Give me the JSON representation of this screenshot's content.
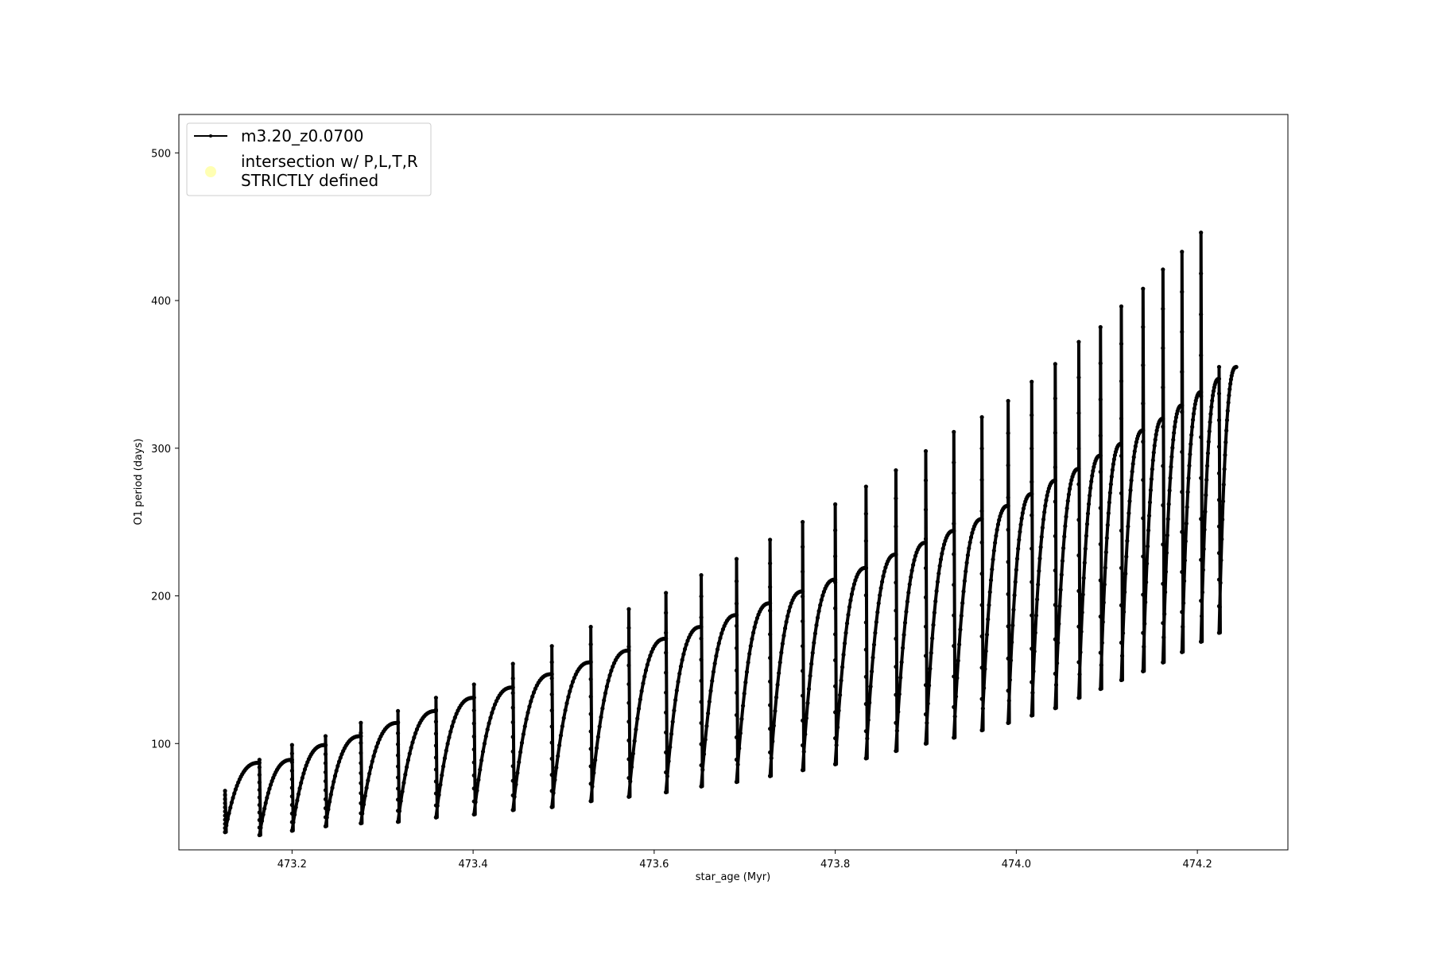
{
  "chart_data": {
    "type": "line",
    "title": "",
    "xlabel": "star_age (Myr)",
    "ylabel": "O1 period (days)",
    "xlim": [
      473.075,
      474.3
    ],
    "ylim": [
      28,
      526
    ],
    "xticks": [
      473.2,
      473.4,
      473.6,
      473.8,
      474.0,
      474.2
    ],
    "xtick_labels": [
      "473.2",
      "473.4",
      "473.6",
      "473.8",
      "474.0",
      "474.2"
    ],
    "yticks": [
      100,
      200,
      300,
      400,
      500
    ],
    "ytick_labels": [
      "100",
      "200",
      "300",
      "400",
      "500"
    ],
    "grid": false,
    "legend_position": "upper-left",
    "series": [
      {
        "name": "m3.20_z0.0700",
        "color": "#000000",
        "marker": "dot",
        "cycles": [
          {
            "start": 473.126,
            "end": 473.164,
            "min": 40,
            "max": 87,
            "spike": 68
          },
          {
            "start": 473.164,
            "end": 473.2,
            "min": 38,
            "max": 89,
            "spike": 89
          },
          {
            "start": 473.2,
            "end": 473.237,
            "min": 41,
            "max": 99,
            "spike": 99
          },
          {
            "start": 473.237,
            "end": 473.276,
            "min": 44,
            "max": 105,
            "spike": 105
          },
          {
            "start": 473.276,
            "end": 473.317,
            "min": 46,
            "max": 114,
            "spike": 114
          },
          {
            "start": 473.317,
            "end": 473.359,
            "min": 47,
            "max": 122,
            "spike": 122
          },
          {
            "start": 473.359,
            "end": 473.401,
            "min": 50,
            "max": 131,
            "spike": 131
          },
          {
            "start": 473.401,
            "end": 473.444,
            "min": 52,
            "max": 138,
            "spike": 140
          },
          {
            "start": 473.444,
            "end": 473.487,
            "min": 55,
            "max": 147,
            "spike": 154
          },
          {
            "start": 473.487,
            "end": 473.53,
            "min": 57,
            "max": 155,
            "spike": 166
          },
          {
            "start": 473.53,
            "end": 473.572,
            "min": 61,
            "max": 163,
            "spike": 179
          },
          {
            "start": 473.572,
            "end": 473.613,
            "min": 64,
            "max": 171,
            "spike": 191
          },
          {
            "start": 473.613,
            "end": 473.652,
            "min": 67,
            "max": 179,
            "spike": 202
          },
          {
            "start": 473.652,
            "end": 473.691,
            "min": 71,
            "max": 187,
            "spike": 214
          },
          {
            "start": 473.691,
            "end": 473.728,
            "min": 74,
            "max": 195,
            "spike": 225
          },
          {
            "start": 473.728,
            "end": 473.764,
            "min": 78,
            "max": 203,
            "spike": 238
          },
          {
            "start": 473.764,
            "end": 473.8,
            "min": 82,
            "max": 211,
            "spike": 250
          },
          {
            "start": 473.8,
            "end": 473.834,
            "min": 86,
            "max": 219,
            "spike": 262
          },
          {
            "start": 473.834,
            "end": 473.867,
            "min": 90,
            "max": 228,
            "spike": 274
          },
          {
            "start": 473.867,
            "end": 473.9,
            "min": 95,
            "max": 236,
            "spike": 285
          },
          {
            "start": 473.9,
            "end": 473.931,
            "min": 100,
            "max": 244,
            "spike": 298
          },
          {
            "start": 473.931,
            "end": 473.962,
            "min": 104,
            "max": 252,
            "spike": 311
          },
          {
            "start": 473.962,
            "end": 473.991,
            "min": 109,
            "max": 261,
            "spike": 321
          },
          {
            "start": 473.991,
            "end": 474.017,
            "min": 114,
            "max": 269,
            "spike": 332
          },
          {
            "start": 474.017,
            "end": 474.043,
            "min": 119,
            "max": 278,
            "spike": 345
          },
          {
            "start": 474.043,
            "end": 474.069,
            "min": 124,
            "max": 286,
            "spike": 357
          },
          {
            "start": 474.069,
            "end": 474.093,
            "min": 131,
            "max": 295,
            "spike": 372
          },
          {
            "start": 474.093,
            "end": 474.116,
            "min": 137,
            "max": 303,
            "spike": 382
          },
          {
            "start": 474.116,
            "end": 474.14,
            "min": 143,
            "max": 312,
            "spike": 396
          },
          {
            "start": 474.14,
            "end": 474.162,
            "min": 149,
            "max": 320,
            "spike": 408
          },
          {
            "start": 474.162,
            "end": 474.183,
            "min": 155,
            "max": 329,
            "spike": 421
          },
          {
            "start": 474.183,
            "end": 474.204,
            "min": 162,
            "max": 338,
            "spike": 433
          },
          {
            "start": 474.204,
            "end": 474.224,
            "min": 169,
            "max": 347,
            "spike": 446
          },
          {
            "start": 474.224,
            "end": 474.243,
            "min": 175,
            "max": 355,
            "spike": 355
          }
        ]
      },
      {
        "name": "intersection w/ P,L,T,R\nSTRICTLY defined",
        "color": "#ffffa0",
        "marker": "circle",
        "points": []
      }
    ]
  }
}
